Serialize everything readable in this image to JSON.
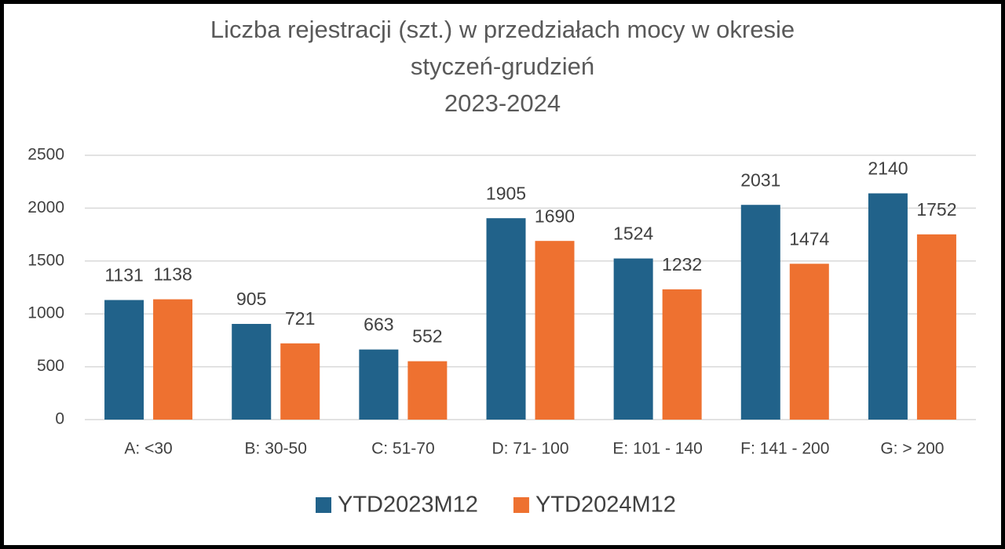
{
  "chart_data": {
    "type": "bar",
    "title": [
      "Liczba rejestracji (szt.) w przedziałach mocy w okresie",
      "styczeń-grudzień",
      "2023-2024"
    ],
    "categories": [
      "A: <30",
      "B: 30-50",
      "C: 51-70",
      "D: 71- 100",
      "E: 101 - 140",
      "F: 141 - 200",
      "G: > 200"
    ],
    "series": [
      {
        "name": "YTD2023M12",
        "color": "#21628a",
        "values": [
          1131,
          905,
          663,
          1905,
          1524,
          2031,
          2140
        ]
      },
      {
        "name": "YTD2024M12",
        "color": "#ee7130",
        "values": [
          1138,
          721,
          552,
          1690,
          1232,
          1474,
          1752
        ]
      }
    ],
    "ylim": [
      0,
      2500
    ],
    "yticks": [
      0,
      500,
      1000,
      1500,
      2000,
      2500
    ],
    "grid": true,
    "legend": "bottom"
  }
}
